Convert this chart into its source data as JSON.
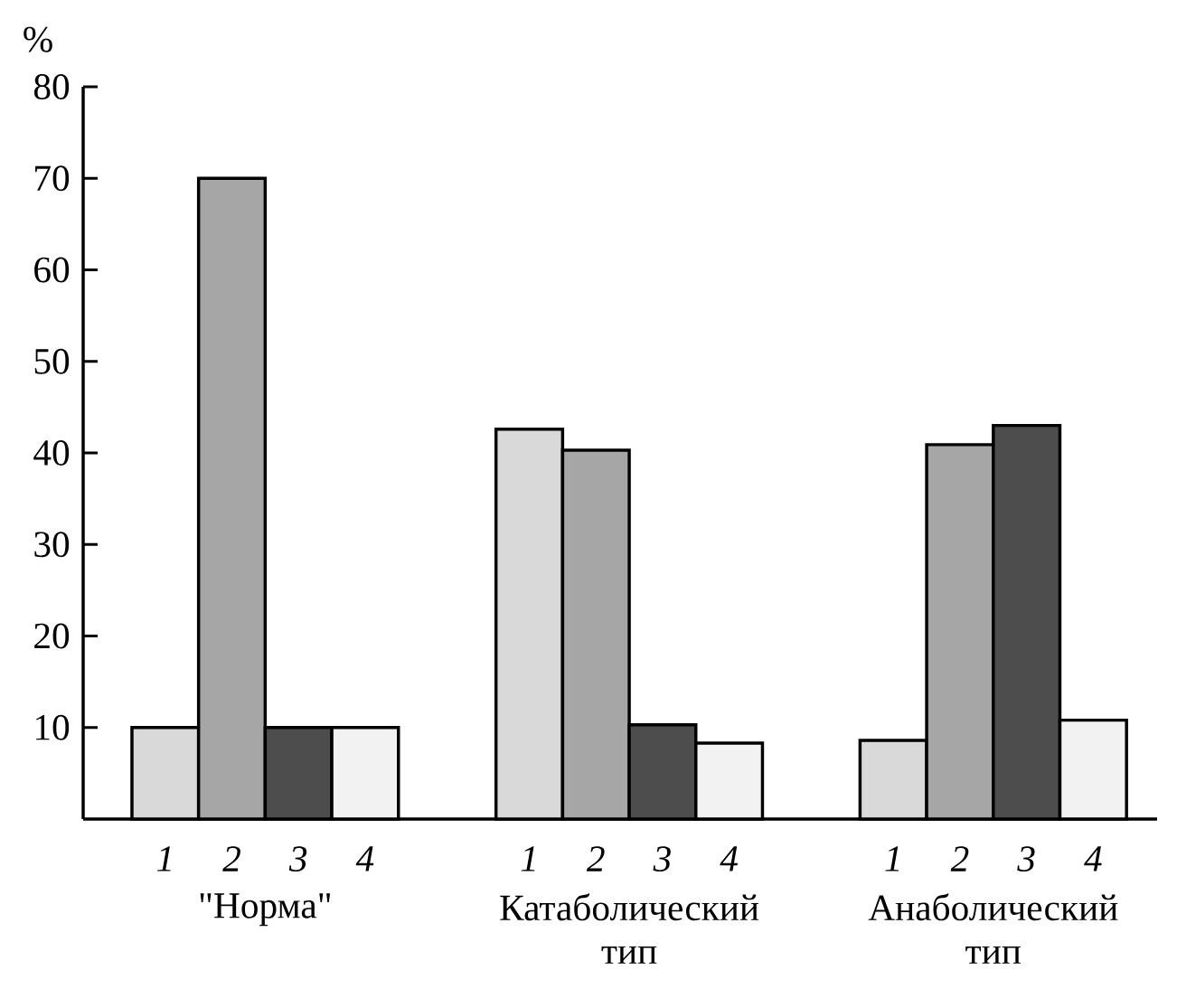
{
  "chart_data": {
    "type": "bar",
    "ylabel": "%",
    "categories": [
      "\"Норма\"",
      "Катаболический тип",
      "Анаболический тип"
    ],
    "series": [
      {
        "name": "1",
        "color": "#d9d9d9",
        "values": [
          10,
          42.6,
          8.6
        ]
      },
      {
        "name": "2",
        "color": "#a6a6a6",
        "values": [
          70,
          40.3,
          40.9
        ]
      },
      {
        "name": "3",
        "color": "#4d4d4d",
        "values": [
          10,
          10.3,
          43
        ]
      },
      {
        "name": "4",
        "color": "#f2f2f2",
        "values": [
          10,
          8.3,
          10.8
        ]
      }
    ],
    "ylim": [
      0,
      80
    ],
    "yticks": [
      10,
      20,
      30,
      40,
      50,
      60,
      70,
      80
    ],
    "grid": false
  }
}
